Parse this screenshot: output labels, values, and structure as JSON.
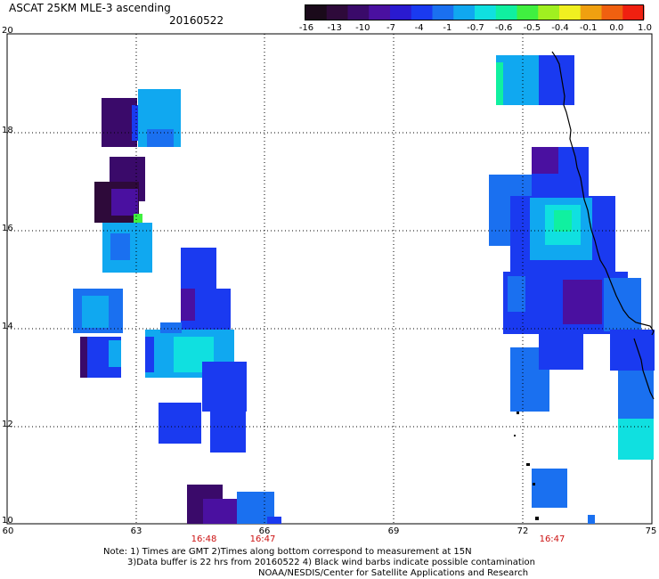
{
  "header": {
    "title": "ASCAT 25KM MLE-3 ascending",
    "date": "20160522"
  },
  "colorbar": {
    "labels": [
      "-16",
      "-13",
      "-10",
      "-7",
      "-4",
      "-1",
      "-0.7",
      "-0.6",
      "-0.5",
      "-0.4",
      "-0.1",
      "0.0",
      "1.0"
    ],
    "colors": [
      "#1a0a1a",
      "#2e0a3a",
      "#3a0a6a",
      "#4a10a0",
      "#2a1ad0",
      "#1a3af0",
      "#1a70f0",
      "#10a8f0",
      "#10e0e0",
      "#10f0a0",
      "#40f040",
      "#a0f020",
      "#f0f020",
      "#f0a010",
      "#f06010",
      "#f02010"
    ]
  },
  "axes": {
    "lon_ticks": [
      "60",
      "63",
      "66",
      "69",
      "72",
      "75"
    ],
    "lat_ticks": [
      "20",
      "18",
      "16",
      "14",
      "12",
      "10"
    ],
    "pass_times": [
      {
        "label": "16:48",
        "lon": 64.5
      },
      {
        "label": "16:47",
        "lon": 65.9
      },
      {
        "label": "16:47",
        "lon": 72.7
      }
    ]
  },
  "footer": {
    "line1": "Note: 1) Times are GMT 2)Times along bottom correspond to measurement at 15N",
    "line2": "3)Data buffer is 22 hrs from 20160522 4) Black wind barbs indicate possible contamination",
    "line3": "NOAA/NESDIS/Center for Satellite Applications and Research"
  }
}
